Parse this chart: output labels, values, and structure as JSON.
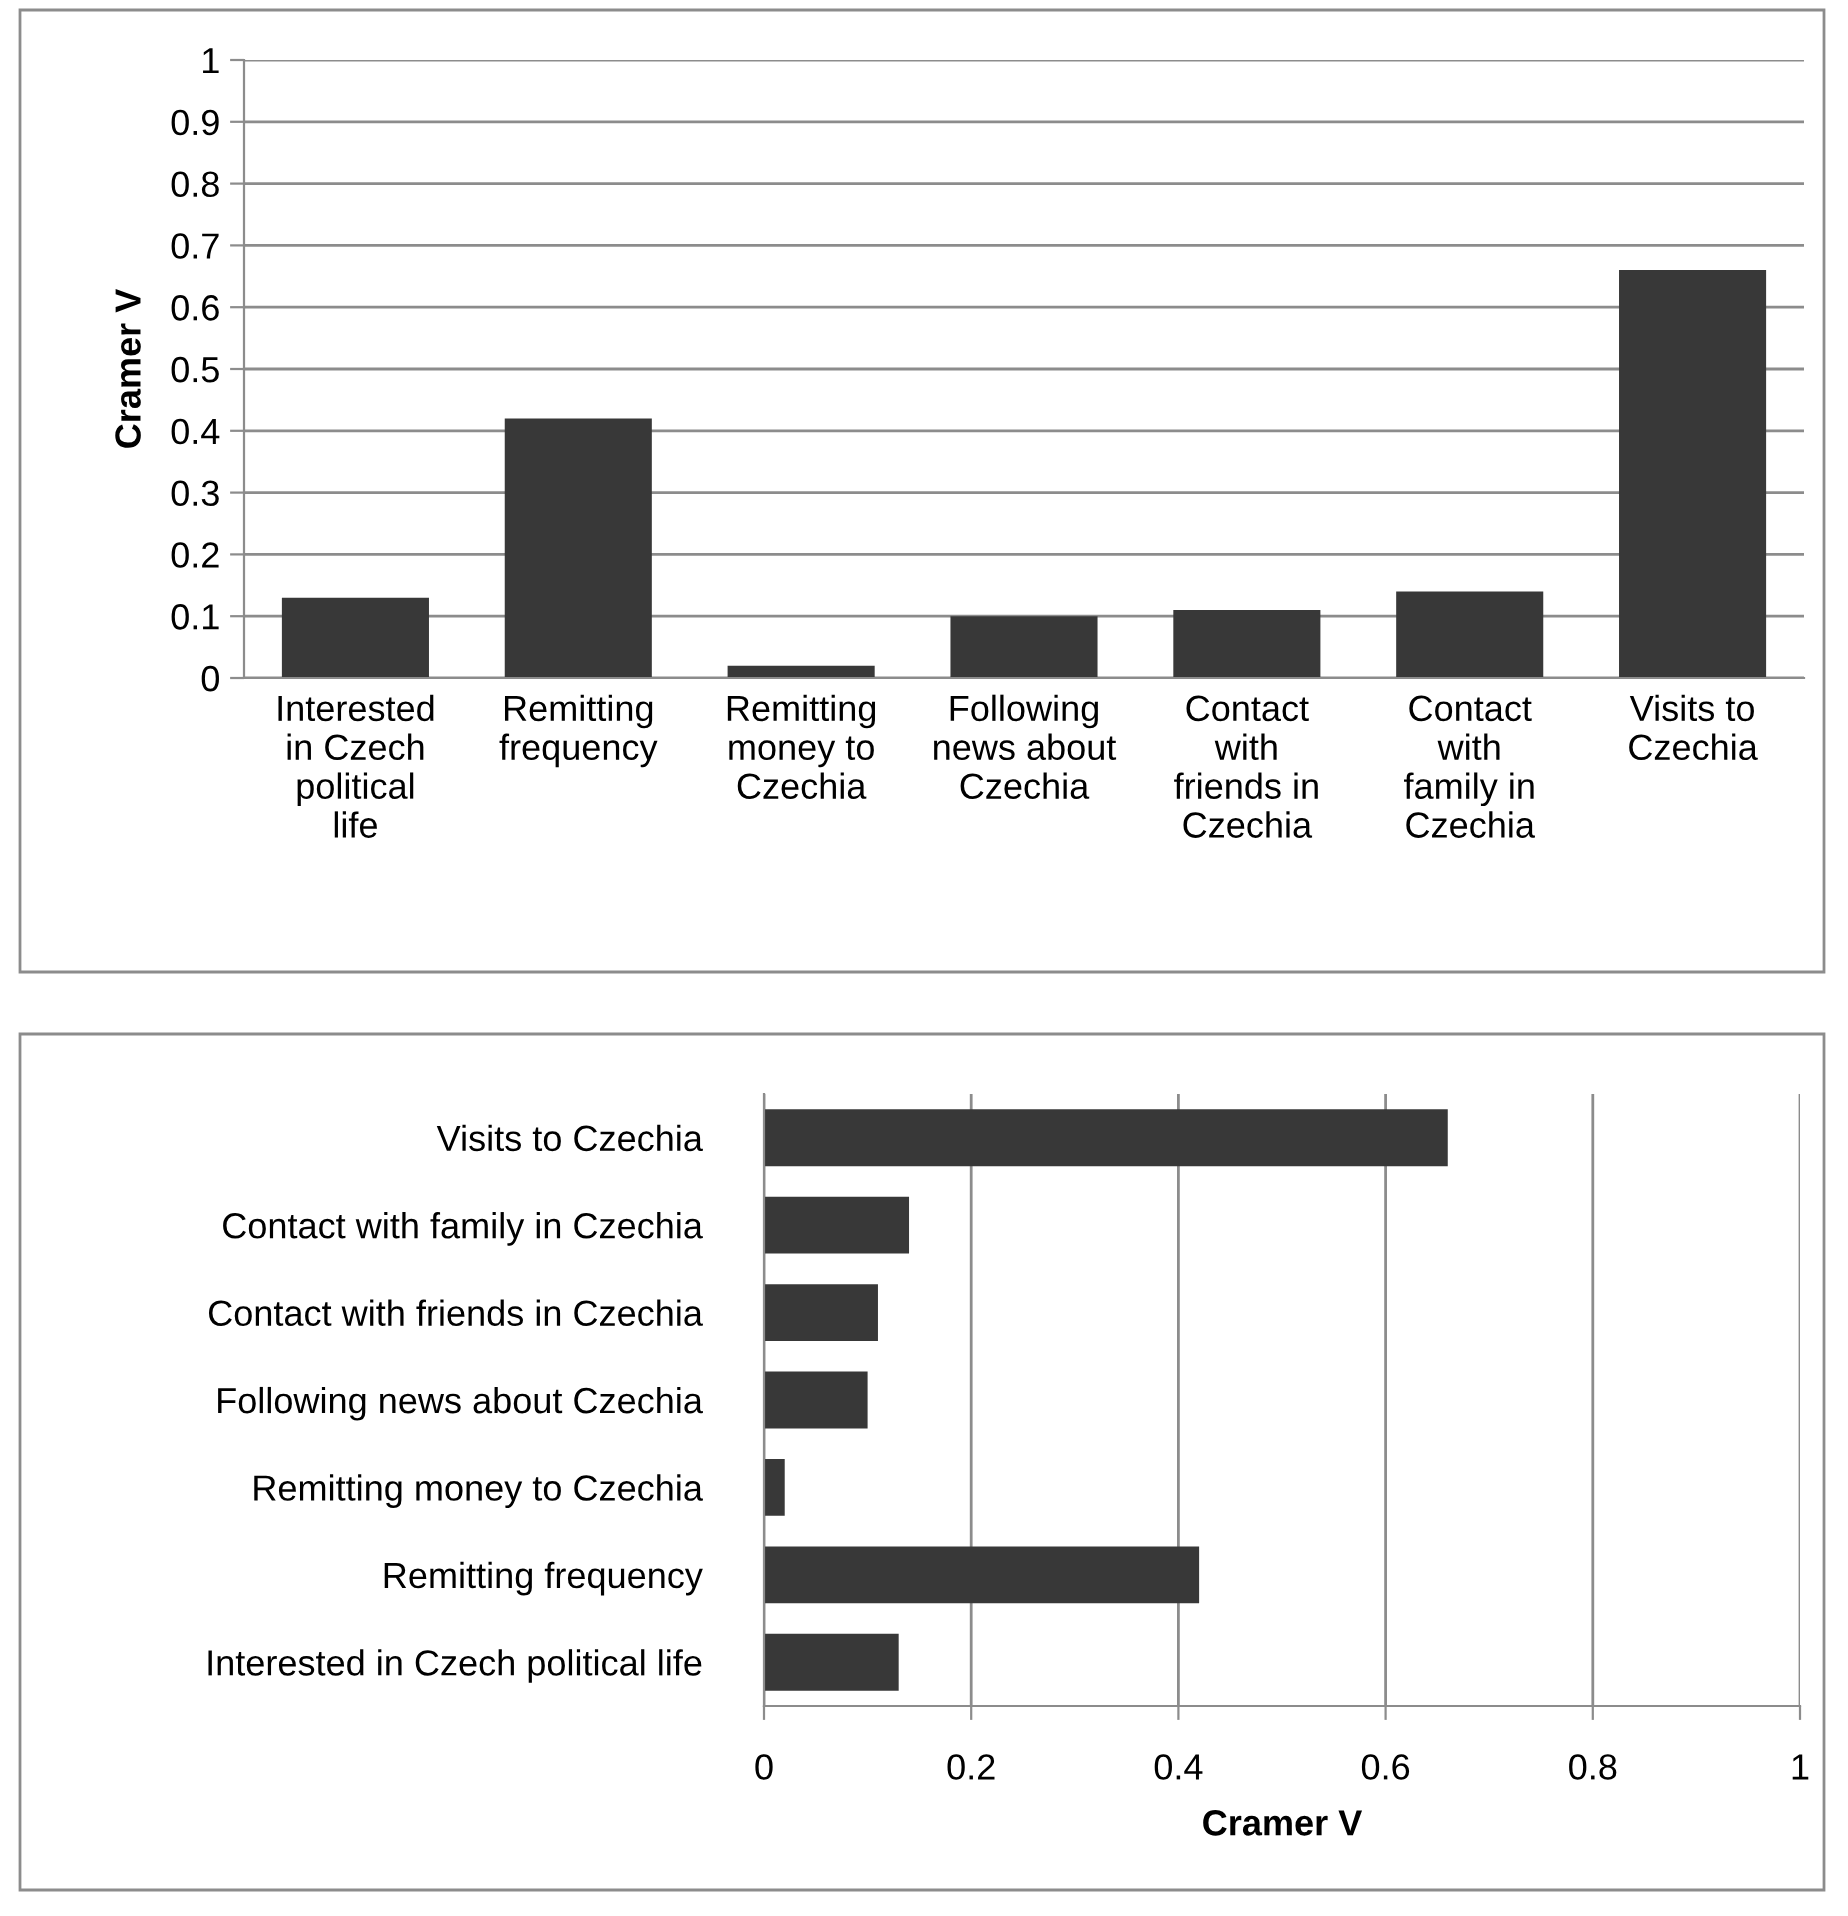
{
  "chart_data": [
    {
      "type": "bar",
      "ylabel": "Cramer V",
      "categories": [
        "Interested in Czech political life",
        "Remitting frequency",
        "Remitting money to Czechia",
        "Following news about Czechia",
        "Contact with friends in Czechia",
        "Contact with family in Czechia",
        "Visits to Czechia"
      ],
      "values": [
        0.13,
        0.42,
        0.02,
        0.1,
        0.11,
        0.14,
        0.66
      ],
      "color": "#383838",
      "ylim": [
        0,
        1
      ],
      "yticks": [
        0,
        0.1,
        0.2,
        0.3,
        0.4,
        0.5,
        0.6,
        0.7,
        0.8,
        0.9,
        1
      ],
      "grid": "y",
      "legend": false
    },
    {
      "type": "bar",
      "orientation": "horizontal",
      "xlabel": "Cramer V",
      "categories": [
        "Visits to Czechia",
        "Contact with family in Czechia",
        "Contact with friends in Czechia",
        "Following news about Czechia",
        "Remitting money to Czechia",
        "Remitting frequency",
        "Interested in Czech political life"
      ],
      "values": [
        0.66,
        0.14,
        0.11,
        0.1,
        0.02,
        0.42,
        0.13
      ],
      "color": "#383838",
      "xlim": [
        0,
        1
      ],
      "xticks": [
        0,
        0.2,
        0.4,
        0.6,
        0.8,
        1
      ],
      "grid": "x",
      "legend": false
    }
  ]
}
